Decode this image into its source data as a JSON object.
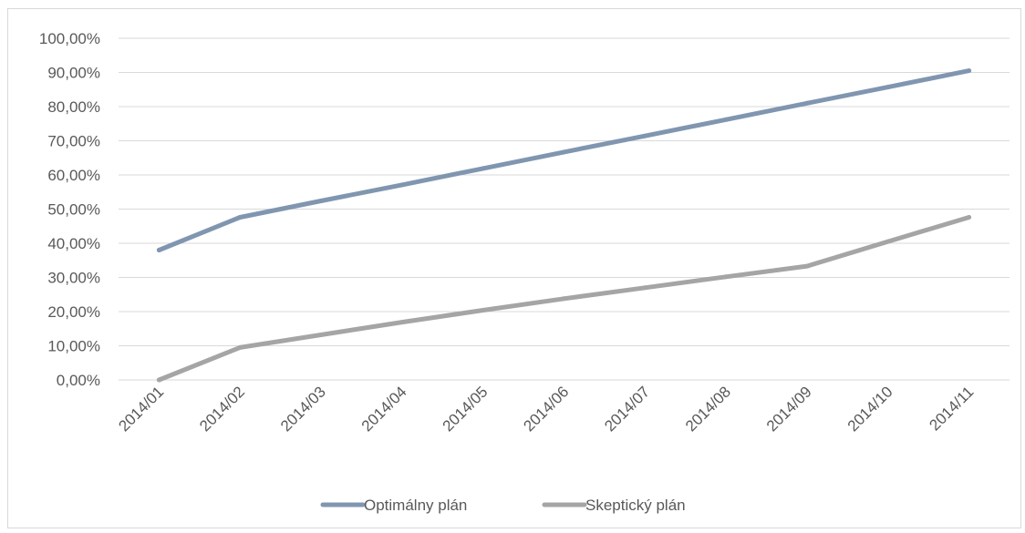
{
  "chart_data": {
    "type": "line",
    "title": "",
    "xlabel": "",
    "ylabel": "",
    "ylim": [
      0,
      100
    ],
    "grid": true,
    "legend_position": "bottom",
    "y_ticks": [
      "0,00%",
      "10,00%",
      "20,00%",
      "30,00%",
      "40,00%",
      "50,00%",
      "60,00%",
      "70,00%",
      "80,00%",
      "90,00%",
      "100,00%"
    ],
    "categories": [
      "2014/01",
      "2014/02",
      "2014/03",
      "2014/04",
      "2014/05",
      "2014/06",
      "2014/07",
      "2014/08",
      "2014/09",
      "2014/10",
      "2014/11"
    ],
    "series": [
      {
        "name": "Optimálny plán",
        "color": "#8096b0",
        "values": [
          38.0,
          47.6,
          52.4,
          57.1,
          61.9,
          66.7,
          71.4,
          76.2,
          81.0,
          85.7,
          90.5
        ]
      },
      {
        "name": "Skeptický plán",
        "color": "#a5a5a5",
        "values": [
          0.0,
          9.5,
          13.2,
          16.9,
          20.4,
          23.8,
          27.0,
          30.2,
          33.3,
          40.5,
          47.6
        ]
      }
    ]
  }
}
